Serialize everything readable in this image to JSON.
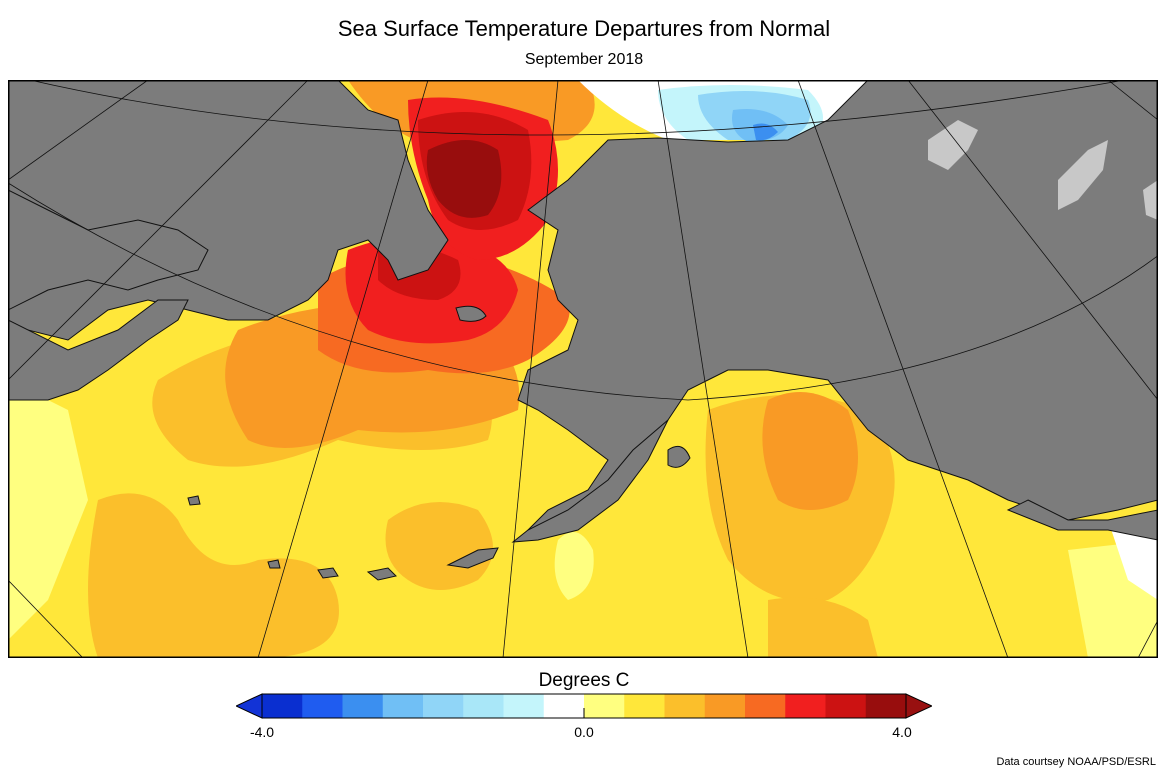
{
  "title": "Sea Surface Temperature Departures from Normal",
  "subtitle": "September 2018",
  "colorbar": {
    "title": "Degrees C",
    "min_label": "-4.0",
    "mid_label": "0.0",
    "max_label": "4.0",
    "min": -4.0,
    "max": 4.0,
    "colors": [
      "#0a2fd0",
      "#1f5cf0",
      "#3b8ff0",
      "#70bff5",
      "#90d5f7",
      "#a9e7f8",
      "#c4f5fb",
      "#ffffff",
      "#ffff80",
      "#ffe73a",
      "#fbbf2b",
      "#f99a25",
      "#f76a22",
      "#f11f1f",
      "#cc1212",
      "#980d0d"
    ],
    "under_color": "#1233d6",
    "over_color": "#981010"
  },
  "map": {
    "land_color": "#7c7c7c",
    "coast_color": "#111111",
    "sea_ice_color": "#c8c8c8"
  },
  "credit": "Data courtsey NOAA/PSD/ESRL"
}
